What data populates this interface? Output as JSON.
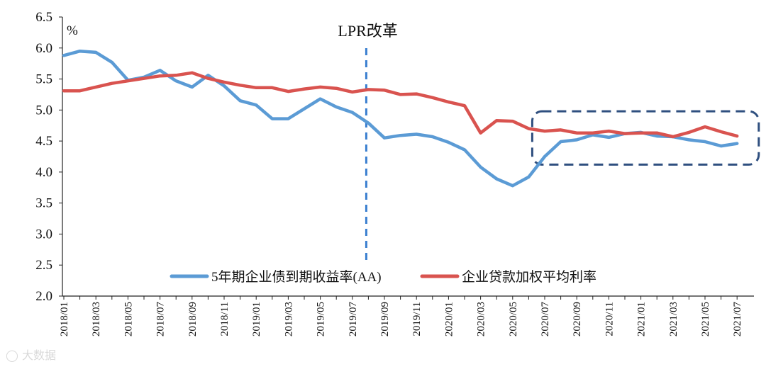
{
  "chart_data": {
    "type": "line",
    "unit_label": "%",
    "ylim": [
      2.0,
      6.5
    ],
    "y_ticks": [
      "2.0",
      "2.5",
      "3.0",
      "3.5",
      "4.0",
      "4.5",
      "5.0",
      "5.5",
      "6.0",
      "6.5"
    ],
    "x_tick_labels": [
      "2018/01",
      "2018/03",
      "2018/05",
      "2018/07",
      "2018/09",
      "2018/11",
      "2019/01",
      "2019/03",
      "2019/05",
      "2019/07",
      "2019/09",
      "2019/11",
      "2020/01",
      "2020/03",
      "2020/05",
      "2020/07",
      "2020/09",
      "2020/11",
      "2021/01",
      "2021/03",
      "2021/05",
      "2021/07"
    ],
    "x": [
      "2018/01",
      "2018/02",
      "2018/03",
      "2018/04",
      "2018/05",
      "2018/06",
      "2018/07",
      "2018/08",
      "2018/09",
      "2018/10",
      "2018/11",
      "2018/12",
      "2019/01",
      "2019/02",
      "2019/03",
      "2019/04",
      "2019/05",
      "2019/06",
      "2019/07",
      "2019/08",
      "2019/09",
      "2019/10",
      "2019/11",
      "2019/12",
      "2020/01",
      "2020/02",
      "2020/03",
      "2020/04",
      "2020/05",
      "2020/06",
      "2020/07",
      "2020/08",
      "2020/09",
      "2020/10",
      "2020/11",
      "2020/12",
      "2021/01",
      "2021/02",
      "2021/03",
      "2021/04",
      "2021/05",
      "2021/06",
      "2021/07"
    ],
    "series": [
      {
        "name": "5年期企业债到期收益率(AA)",
        "color": "#5b9bd5",
        "values": [
          5.88,
          5.95,
          5.93,
          5.77,
          5.48,
          5.53,
          5.64,
          5.47,
          5.37,
          5.56,
          5.39,
          5.15,
          5.08,
          4.86,
          4.86,
          5.02,
          5.18,
          5.05,
          4.96,
          4.79,
          4.55,
          4.59,
          4.61,
          4.57,
          4.48,
          4.36,
          4.08,
          3.89,
          3.78,
          3.92,
          4.25,
          4.49,
          4.52,
          4.6,
          4.56,
          4.62,
          4.64,
          4.58,
          4.57,
          4.52,
          4.49,
          4.42,
          4.46
        ]
      },
      {
        "name": "企业贷款加权平均利率",
        "color": "#d9534f",
        "values": [
          5.31,
          5.31,
          5.37,
          5.43,
          5.47,
          5.51,
          5.55,
          5.56,
          5.6,
          5.51,
          5.45,
          5.4,
          5.36,
          5.36,
          5.3,
          5.34,
          5.37,
          5.35,
          5.29,
          5.33,
          5.32,
          5.25,
          5.26,
          5.2,
          5.13,
          5.07,
          4.63,
          4.83,
          4.82,
          4.7,
          4.66,
          4.68,
          4.63,
          4.63,
          4.66,
          4.62,
          4.63,
          4.63,
          4.57,
          4.64,
          4.73,
          4.65,
          4.58
        ]
      }
    ],
    "annotations": [
      {
        "text": "LPR改革",
        "x": "2019/08",
        "style": "dashed-vertical-line"
      },
      {
        "text": "",
        "x_range": [
          "2020/06",
          "2021/08"
        ],
        "y_range": [
          4.12,
          4.98
        ],
        "style": "dashed-rounded-box"
      }
    ],
    "legend_position": "bottom-inside",
    "grid": false
  }
}
